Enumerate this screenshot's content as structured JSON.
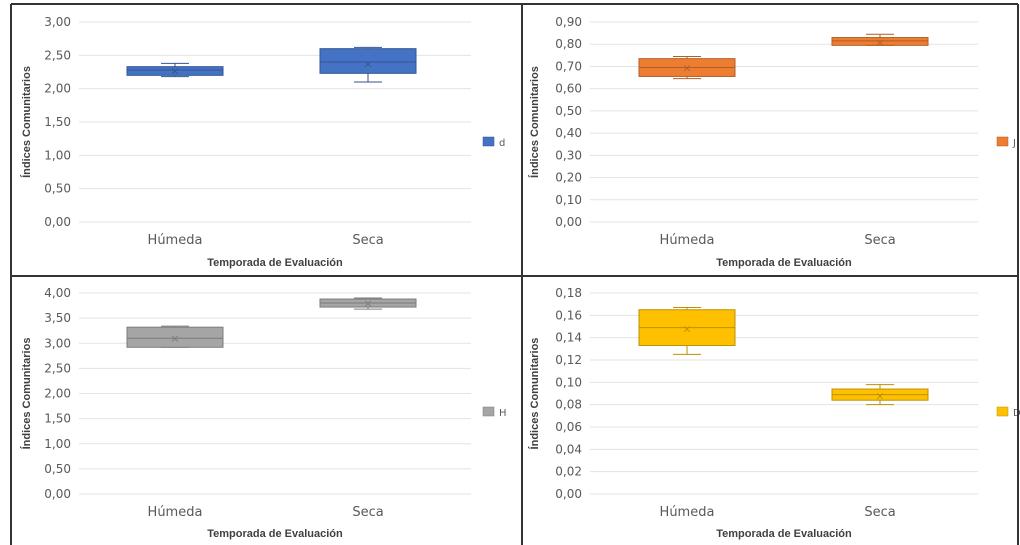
{
  "chart_data": [
    {
      "type": "boxplot",
      "color": "#4472C4",
      "legend": "d",
      "xlabel": "Temporada de Evaluación",
      "ylabel": "Índices Comunitarios",
      "ylim": [
        0,
        3
      ],
      "ystep": 0.5,
      "decimals": 2,
      "categories": [
        "Húmeda",
        "Seca"
      ],
      "boxes": [
        {
          "min": 2.18,
          "q1": 2.2,
          "median": 2.28,
          "q3": 2.33,
          "max": 2.38,
          "mean": 2.27
        },
        {
          "min": 2.1,
          "q1": 2.23,
          "median": 2.4,
          "q3": 2.6,
          "max": 2.62,
          "mean": 2.38
        }
      ]
    },
    {
      "type": "boxplot",
      "color": "#ED7D31",
      "legend": "J",
      "xlabel": "Temporada de Evaluación",
      "ylabel": "Índices Comunitarios",
      "ylim": [
        0,
        0.9
      ],
      "ystep": 0.1,
      "decimals": 2,
      "categories": [
        "Húmeda",
        "Seca"
      ],
      "boxes": [
        {
          "min": 0.645,
          "q1": 0.655,
          "median": 0.695,
          "q3": 0.735,
          "max": 0.745,
          "mean": 0.695
        },
        {
          "min": 0.795,
          "q1": 0.795,
          "median": 0.815,
          "q3": 0.83,
          "max": 0.845,
          "mean": 0.81
        }
      ]
    },
    {
      "type": "boxplot",
      "color": "#A5A5A5",
      "legend": "H",
      "xlabel": "Temporada de Evaluación",
      "ylabel": "Índices Comunitarios",
      "ylim": [
        0,
        4
      ],
      "ystep": 0.5,
      "decimals": 2,
      "categories": [
        "Húmeda",
        "Seca"
      ],
      "boxes": [
        {
          "min": 2.92,
          "q1": 2.92,
          "median": 3.1,
          "q3": 3.32,
          "max": 3.34,
          "mean": 3.1
        },
        {
          "min": 3.68,
          "q1": 3.72,
          "median": 3.8,
          "q3": 3.88,
          "max": 3.9,
          "mean": 3.8
        }
      ]
    },
    {
      "type": "boxplot",
      "color": "#FFC000",
      "legend": "D",
      "xlabel": "Temporada de Evaluación",
      "ylabel": "Índices Comunitarios",
      "ylim": [
        0,
        0.18
      ],
      "ystep": 0.02,
      "decimals": 2,
      "categories": [
        "Húmeda",
        "Seca"
      ],
      "boxes": [
        {
          "min": 0.125,
          "q1": 0.133,
          "median": 0.149,
          "q3": 0.165,
          "max": 0.167,
          "mean": 0.148
        },
        {
          "min": 0.08,
          "q1": 0.084,
          "median": 0.089,
          "q3": 0.094,
          "max": 0.098,
          "mean": 0.088
        }
      ]
    }
  ]
}
